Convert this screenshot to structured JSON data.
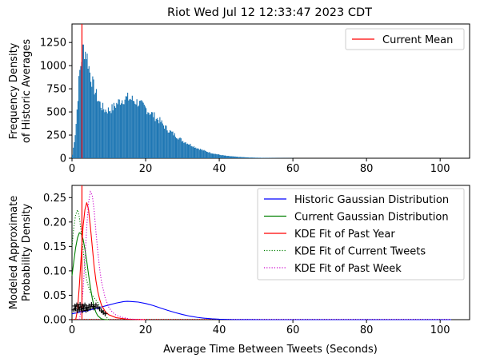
{
  "chart_data": [
    {
      "type": "bar",
      "title": "Riot Wed Jul 12 12:33:47 2023 CDT",
      "xlabel": "",
      "ylabel": [
        "Frequency Density",
        "of Historic Averages"
      ],
      "xlim": [
        0,
        108
      ],
      "ylim": [
        0,
        1450
      ],
      "x_ticks": [
        0,
        20,
        40,
        60,
        80,
        100
      ],
      "y_ticks": [
        0,
        250,
        500,
        750,
        1000,
        1250
      ],
      "bar_color": "#1f77b4",
      "current_mean": 2.7,
      "current_mean_color": "#ff0000",
      "legend_position": "top-right",
      "legend": [
        {
          "label": "Current Mean",
          "color": "#ff0000",
          "style": "solid"
        }
      ],
      "histogram_profile": [
        [
          0,
          0
        ],
        [
          1,
          300
        ],
        [
          2,
          900
        ],
        [
          3,
          1200
        ],
        [
          4,
          1120
        ],
        [
          5,
          900
        ],
        [
          6,
          760
        ],
        [
          7,
          640
        ],
        [
          8,
          560
        ],
        [
          9,
          520
        ],
        [
          10,
          520
        ],
        [
          11,
          540
        ],
        [
          12,
          580
        ],
        [
          13,
          620
        ],
        [
          14,
          640
        ],
        [
          15,
          650
        ],
        [
          16,
          640
        ],
        [
          17,
          620
        ],
        [
          18,
          600
        ],
        [
          19,
          570
        ],
        [
          20,
          540
        ],
        [
          21,
          500
        ],
        [
          22,
          470
        ],
        [
          23,
          430
        ],
        [
          24,
          400
        ],
        [
          25,
          350
        ],
        [
          26,
          310
        ],
        [
          27,
          280
        ],
        [
          28,
          250
        ],
        [
          29,
          220
        ],
        [
          30,
          190
        ],
        [
          32,
          150
        ],
        [
          34,
          110
        ],
        [
          36,
          80
        ],
        [
          38,
          55
        ],
        [
          40,
          38
        ],
        [
          42,
          25
        ],
        [
          45,
          15
        ],
        [
          48,
          8
        ],
        [
          52,
          4
        ],
        [
          56,
          2
        ],
        [
          60,
          1
        ],
        [
          104,
          0
        ]
      ]
    },
    {
      "type": "line",
      "title": "",
      "xlabel": "Average Time Between Tweets (Seconds)",
      "ylabel": [
        "Modeled Approximate",
        "Probability Density"
      ],
      "xlim": [
        0,
        108
      ],
      "ylim": [
        0,
        0.275
      ],
      "x_ticks": [
        0,
        20,
        40,
        60,
        80,
        100
      ],
      "y_ticks": [
        0.0,
        0.05,
        0.1,
        0.15,
        0.2,
        0.25
      ],
      "y_tick_labels": [
        "0.00",
        "0.05",
        "0.10",
        "0.15",
        "0.20",
        "0.25"
      ],
      "legend_position": "top-right",
      "series": [
        {
          "name": "Historic Gaussian Distribution",
          "color": "#0000ff",
          "style": "solid",
          "x": [
            0,
            2,
            4,
            6,
            8,
            10,
            12,
            14,
            15,
            16,
            18,
            20,
            22,
            24,
            26,
            28,
            30,
            32,
            34,
            36,
            38,
            40,
            44,
            48,
            52,
            60,
            80,
            103
          ],
          "y": [
            0.012,
            0.015,
            0.018,
            0.022,
            0.026,
            0.03,
            0.034,
            0.037,
            0.0375,
            0.0372,
            0.036,
            0.033,
            0.029,
            0.024,
            0.019,
            0.0145,
            0.0105,
            0.0072,
            0.0047,
            0.0029,
            0.0017,
            0.0009,
            0.0002,
            5e-05,
            0.0,
            0.0,
            0.0,
            0.0
          ]
        },
        {
          "name": "Current Gaussian Distribution",
          "color": "#008000",
          "style": "solid",
          "x": [
            0,
            0.5,
            1,
            1.5,
            2,
            2.5,
            3,
            3.5,
            4,
            4.5,
            5,
            5.5,
            6,
            6.5,
            7,
            8,
            9,
            10
          ],
          "y": [
            0.09,
            0.12,
            0.148,
            0.168,
            0.178,
            0.176,
            0.165,
            0.145,
            0.12,
            0.092,
            0.066,
            0.044,
            0.027,
            0.015,
            0.008,
            0.0015,
            0.0002,
            0.0
          ]
        },
        {
          "name": "KDE Fit of Past Year",
          "color": "#ff0000",
          "style": "solid",
          "x": [
            1,
            1.5,
            2,
            2.5,
            3,
            3.5,
            4,
            4.5,
            5,
            5.5,
            6,
            6.5,
            7,
            7.5,
            8,
            9,
            10,
            12,
            15,
            20
          ],
          "y": [
            0.0,
            0.02,
            0.07,
            0.13,
            0.19,
            0.225,
            0.24,
            0.225,
            0.19,
            0.15,
            0.11,
            0.08,
            0.058,
            0.042,
            0.03,
            0.017,
            0.01,
            0.004,
            0.001,
            0.0
          ]
        },
        {
          "name": "KDE Fit of Current Tweets",
          "color": "#008000",
          "style": "dotted",
          "x": [
            0,
            0.5,
            1,
            1.5,
            2,
            2.5,
            3,
            3.5,
            4,
            5,
            6,
            7,
            8,
            9,
            10
          ],
          "y": [
            0.15,
            0.19,
            0.215,
            0.225,
            0.21,
            0.18,
            0.145,
            0.11,
            0.08,
            0.055,
            0.045,
            0.035,
            0.02,
            0.008,
            0.0
          ]
        },
        {
          "name": "KDE Fit of Past Week",
          "color": "#cc00cc",
          "style": "dotted",
          "x": [
            2,
            2.5,
            3,
            3.5,
            4,
            4.5,
            5,
            5.5,
            6,
            6.5,
            7,
            7.5,
            8,
            9,
            10,
            11,
            12,
            14,
            16,
            20
          ],
          "y": [
            0.0,
            0.02,
            0.06,
            0.12,
            0.19,
            0.24,
            0.262,
            0.255,
            0.225,
            0.18,
            0.14,
            0.105,
            0.078,
            0.045,
            0.025,
            0.015,
            0.009,
            0.004,
            0.001,
            0.0
          ]
        }
      ],
      "markers": {
        "symbol": "+",
        "color": "#000000",
        "points": [
          [
            0.5,
            0.02
          ],
          [
            0.8,
            0.028
          ],
          [
            1.0,
            0.022
          ],
          [
            1.3,
            0.03
          ],
          [
            1.5,
            0.018
          ],
          [
            1.8,
            0.026
          ],
          [
            2.0,
            0.021
          ],
          [
            2.2,
            0.031
          ],
          [
            2.5,
            0.024
          ],
          [
            2.8,
            0.018
          ],
          [
            3.0,
            0.028
          ],
          [
            3.2,
            0.022
          ],
          [
            3.5,
            0.03
          ],
          [
            3.8,
            0.019
          ],
          [
            4.0,
            0.025
          ],
          [
            4.3,
            0.021
          ],
          [
            4.6,
            0.028
          ],
          [
            5.0,
            0.024
          ],
          [
            5.3,
            0.031
          ],
          [
            5.7,
            0.027
          ],
          [
            6.0,
            0.024
          ],
          [
            6.5,
            0.03
          ],
          [
            7.0,
            0.026
          ],
          [
            7.5,
            0.022
          ],
          [
            8.0,
            0.018
          ],
          [
            8.5,
            0.015
          ],
          [
            9.0,
            0.012
          ]
        ]
      },
      "baseline_curve": {
        "color": "#ff0000",
        "style": "dotted",
        "x": [
          0,
          103
        ],
        "y": [
          0.0,
          0.0
        ]
      }
    }
  ]
}
